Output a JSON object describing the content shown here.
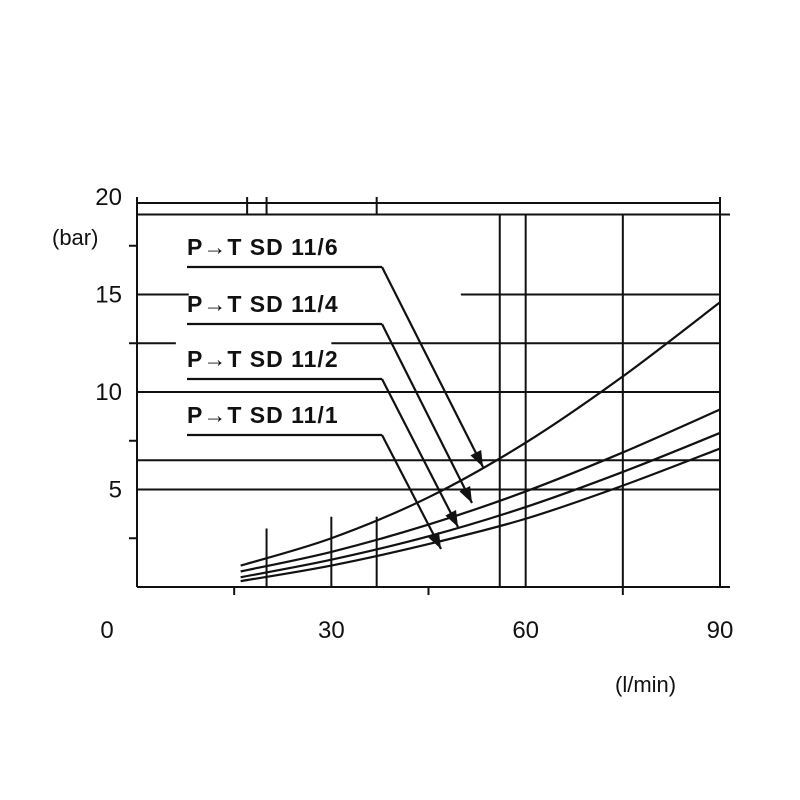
{
  "chart_data": {
    "type": "line",
    "title": "",
    "xlabel": "(l/min)",
    "ylabel": "(bar)",
    "xlim": [
      0,
      90
    ],
    "ylim": [
      0,
      20
    ],
    "x_ticks": [
      "0",
      "30",
      "60",
      "90"
    ],
    "y_ticks": [
      "5",
      "10",
      "15",
      "20"
    ],
    "grid": true,
    "legend": "annotation labels with leader arrows, upper-left",
    "series": [
      {
        "name": "P→T SD 11/6",
        "x": [
          16,
          30,
          45,
          60,
          75,
          90
        ],
        "y": [
          1.1,
          2.5,
          4.6,
          7.4,
          10.8,
          14.6
        ]
      },
      {
        "name": "P→T SD 11/4",
        "x": [
          16,
          30,
          45,
          60,
          75,
          90
        ],
        "y": [
          0.8,
          1.8,
          3.2,
          4.9,
          6.9,
          9.1
        ]
      },
      {
        "name": "P→T SD 11/2",
        "x": [
          16,
          30,
          45,
          60,
          75,
          90
        ],
        "y": [
          0.5,
          1.4,
          2.6,
          4.1,
          5.9,
          7.9
        ]
      },
      {
        "name": "P→T SD 11/1",
        "x": [
          16,
          30,
          45,
          60,
          75,
          90
        ],
        "y": [
          0.3,
          1.1,
          2.2,
          3.5,
          5.2,
          7.1
        ]
      }
    ]
  }
}
